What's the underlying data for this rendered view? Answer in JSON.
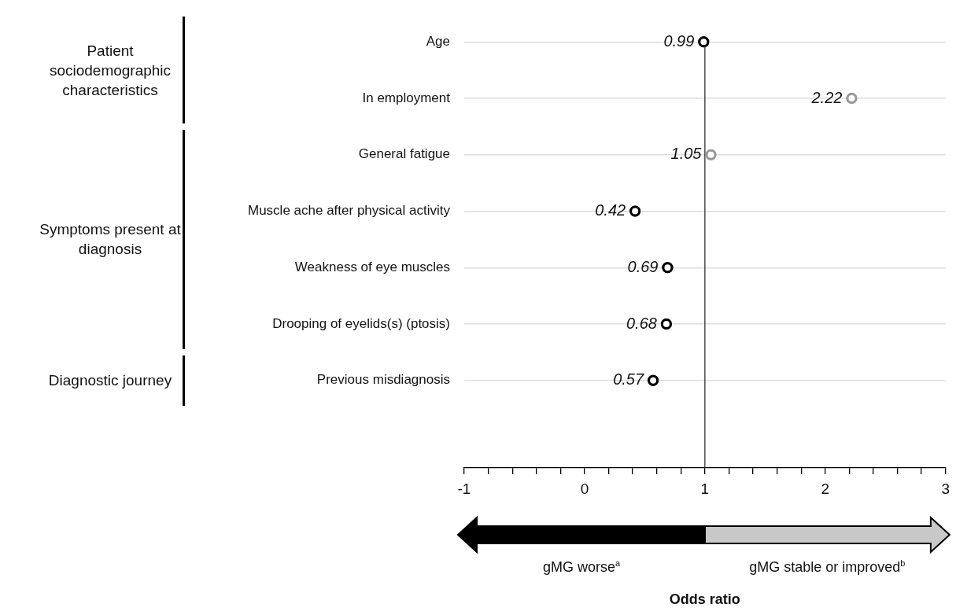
{
  "chart_data": {
    "type": "scatter",
    "orientation": "horizontal",
    "categories": [
      "Age",
      "In employment",
      "General fatigue",
      "Muscle ache after physical activity",
      "Weakness of eye muscles",
      "Drooping of eyelids(s) (ptosis)",
      "Previous misdiagnosis"
    ],
    "values": [
      0.99,
      2.22,
      1.05,
      0.42,
      0.69,
      0.68,
      0.57
    ],
    "colors": [
      "#000000",
      "#999999",
      "#999999",
      "#000000",
      "#000000",
      "#000000",
      "#000000"
    ],
    "xlim": [
      -1,
      3
    ],
    "xticks": [
      -1,
      {
        "value": -0.8,
        "label": null
      },
      {
        "value": -0.6,
        "label": null
      },
      {
        "value": -0.4,
        "label": null
      },
      {
        "value": -0.2,
        "label": null
      },
      0,
      {
        "value": 0.2,
        "label": null
      },
      {
        "value": 0.4,
        "label": null
      },
      {
        "value": 0.6,
        "label": null
      },
      {
        "value": 0.8,
        "label": null
      },
      1,
      {
        "value": 1.2,
        "label": null
      },
      {
        "value": 1.4,
        "label": null
      },
      {
        "value": 1.6,
        "label": null
      },
      {
        "value": 1.8,
        "label": null
      },
      2,
      {
        "value": 2.2,
        "label": null
      },
      {
        "value": 2.4,
        "label": null
      },
      {
        "value": 2.6,
        "label": null
      },
      {
        "value": 2.8,
        "label": null
      },
      3
    ],
    "ref_lines": [
      {
        "axis": "x",
        "value": 1,
        "color": "#333333"
      }
    ],
    "annotations": [
      "Patient sociodemographic characteristics",
      "Symptoms present at diagnosis",
      "Diagnostic journey",
      "gMG worse$^{a}$",
      "gMG stable or improved$^{b}$",
      "Odds ratio"
    ],
    "data_labels": true,
    "grid": "y",
    "marker": "circle",
    "legend": false
  }
}
